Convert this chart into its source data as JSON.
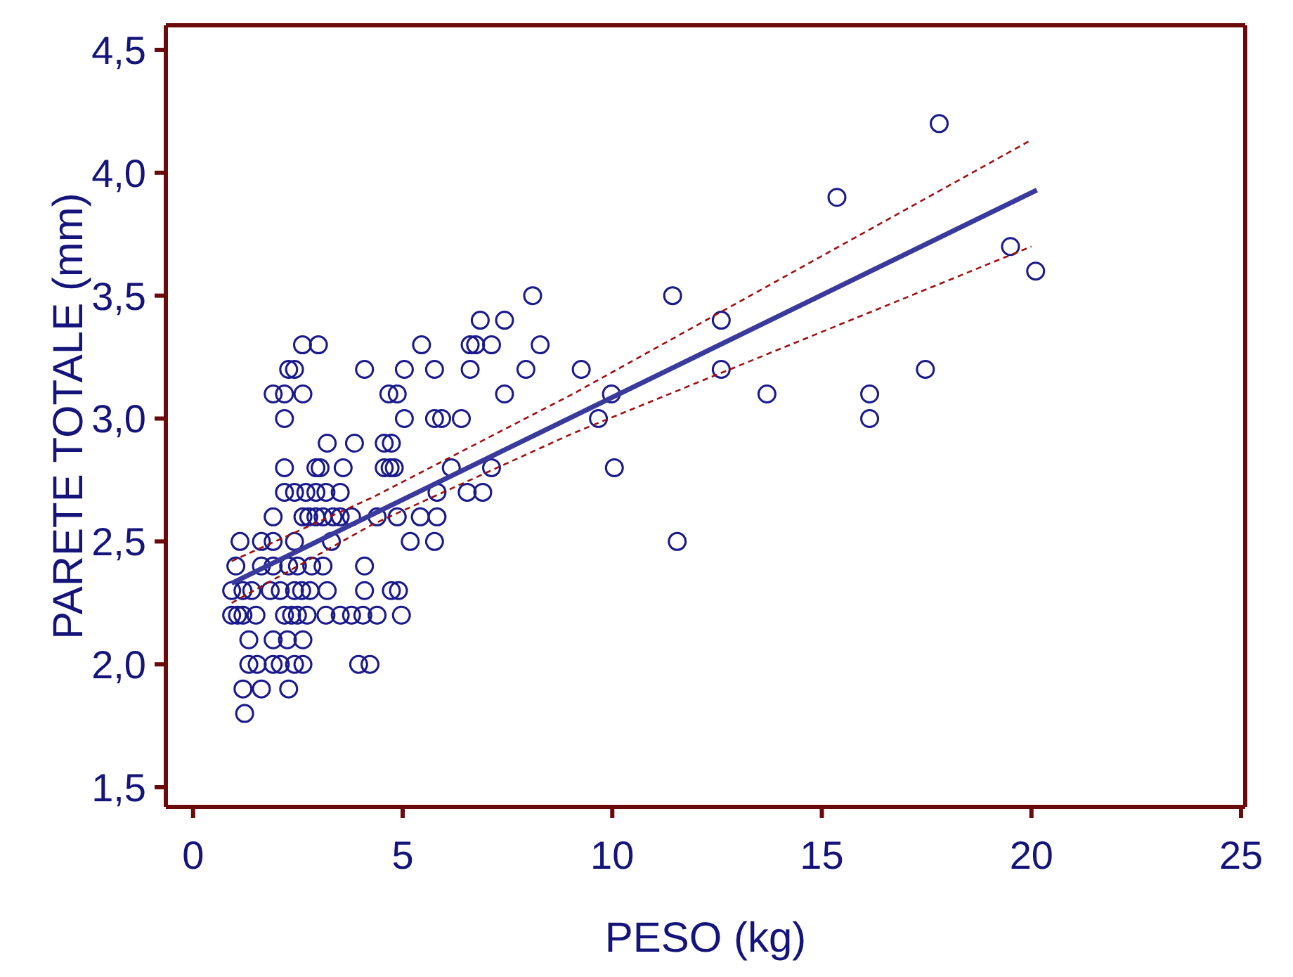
{
  "chart_data": {
    "type": "scatter",
    "xlabel": "PESO (kg)",
    "ylabel": "PARETE TOTALE (mm)",
    "xlim": [
      -0.65,
      25.1
    ],
    "ylim": [
      1.42,
      4.6
    ],
    "xticks": [
      0,
      5,
      10,
      15,
      20,
      25
    ],
    "yticks": [
      {
        "value": 1.5,
        "label": "1,5"
      },
      {
        "value": 2,
        "label": "2,0"
      },
      {
        "value": 2.5,
        "label": "2,5"
      },
      {
        "value": 3,
        "label": "3,0"
      },
      {
        "value": 3.5,
        "label": "3,5"
      },
      {
        "value": 4,
        "label": "4,0"
      },
      {
        "value": 4.5,
        "label": "4,5"
      }
    ],
    "series": [
      {
        "color": "#1a1a8c",
        "marker": "circle",
        "x": [
          2.61,
          2.99,
          5.45,
          6.61,
          6.74,
          7.12,
          8.28,
          2.28,
          2.42,
          4.09,
          5.04,
          5.76,
          6.61,
          7.94,
          9.26,
          1.91,
          2.18,
          2.62,
          4.67,
          4.87,
          7.43,
          9.98,
          2.18,
          5.04,
          5.76,
          5.93,
          6.4,
          9.67,
          3.2,
          3.85,
          4.56,
          4.73,
          2.18,
          2.93,
          3.03,
          3.58,
          4.56,
          4.7,
          4.8,
          6.16,
          7.12,
          10.05,
          2.18,
          2.42,
          2.69,
          2.93,
          3.17,
          3.51,
          5.82,
          6.54,
          6.91,
          1.91,
          2.62,
          2.76,
          2.93,
          3.1,
          3.34,
          3.51,
          3.78,
          4.39,
          4.87,
          5.42,
          5.82,
          1.12,
          1.63,
          1.91,
          2.42,
          3.3,
          5.18,
          5.76,
          1.02,
          1.63,
          1.91,
          2.28,
          2.49,
          2.83,
          3.1,
          4.09,
          0.92,
          1.19,
          1.4,
          1.84,
          2.08,
          2.42,
          2.59,
          2.79,
          3.2,
          4.09,
          4.73,
          4.9,
          0.92,
          1.06,
          1.19,
          1.5,
          2.18,
          2.35,
          2.49,
          2.72,
          3.17,
          3.51,
          3.78,
          4.05,
          4.39,
          4.97,
          1.33,
          1.91,
          2.25,
          2.62,
          1.33,
          1.53,
          1.91,
          2.08,
          2.42,
          2.62,
          3.95,
          4.22,
          1.19,
          1.63,
          2.28,
          1.23,
          8.1,
          6.85,
          7.43,
          17.8,
          15.36,
          19.5,
          20.1,
          11.44,
          12.6,
          12.6,
          17.47,
          13.69,
          16.14,
          16.14,
          11.55
        ],
        "values": [
          3.3,
          3.3,
          3.3,
          3.3,
          3.3,
          3.3,
          3.3,
          3.2,
          3.2,
          3.2,
          3.2,
          3.2,
          3.2,
          3.2,
          3.2,
          3.1,
          3.1,
          3.1,
          3.1,
          3.1,
          3.1,
          3.1,
          3.0,
          3.0,
          3.0,
          3.0,
          3.0,
          3.0,
          2.9,
          2.9,
          2.9,
          2.9,
          2.8,
          2.8,
          2.8,
          2.8,
          2.8,
          2.8,
          2.8,
          2.8,
          2.8,
          2.8,
          2.7,
          2.7,
          2.7,
          2.7,
          2.7,
          2.7,
          2.7,
          2.7,
          2.7,
          2.6,
          2.6,
          2.6,
          2.6,
          2.6,
          2.6,
          2.6,
          2.6,
          2.6,
          2.6,
          2.6,
          2.6,
          2.5,
          2.5,
          2.5,
          2.5,
          2.5,
          2.5,
          2.5,
          2.4,
          2.4,
          2.4,
          2.4,
          2.4,
          2.4,
          2.4,
          2.4,
          2.3,
          2.3,
          2.3,
          2.3,
          2.3,
          2.3,
          2.3,
          2.3,
          2.3,
          2.3,
          2.3,
          2.3,
          2.2,
          2.2,
          2.2,
          2.2,
          2.2,
          2.2,
          2.2,
          2.2,
          2.2,
          2.2,
          2.2,
          2.2,
          2.2,
          2.2,
          2.1,
          2.1,
          2.1,
          2.1,
          2.0,
          2.0,
          2.0,
          2.0,
          2.0,
          2.0,
          2.0,
          2.0,
          1.9,
          1.9,
          1.9,
          1.8,
          3.5,
          3.4,
          3.4,
          4.2,
          3.9,
          3.7,
          3.6,
          3.5,
          3.4,
          3.2,
          3.2,
          3.1,
          3.1,
          3.0,
          2.5
        ]
      },
      {
        "type": "line",
        "color": "#3a3a9c",
        "line_style": "solid",
        "marker": "none",
        "x": [
          0.92,
          20.13
        ],
        "values": [
          2.33,
          3.93
        ]
      },
      {
        "type": "line",
        "color": "#a01010",
        "line_style": "dashed",
        "marker": "none",
        "x": [
          0.92,
          4.29,
          9.06,
          19.96
        ],
        "values": [
          2.42,
          2.68,
          3.1,
          4.13
        ]
      },
      {
        "type": "line",
        "color": "#a01010",
        "line_style": "dashed",
        "marker": "none",
        "x": [
          0.92,
          4.29,
          9.06,
          20.0
        ],
        "values": [
          2.25,
          2.57,
          2.94,
          3.7
        ]
      }
    ]
  }
}
